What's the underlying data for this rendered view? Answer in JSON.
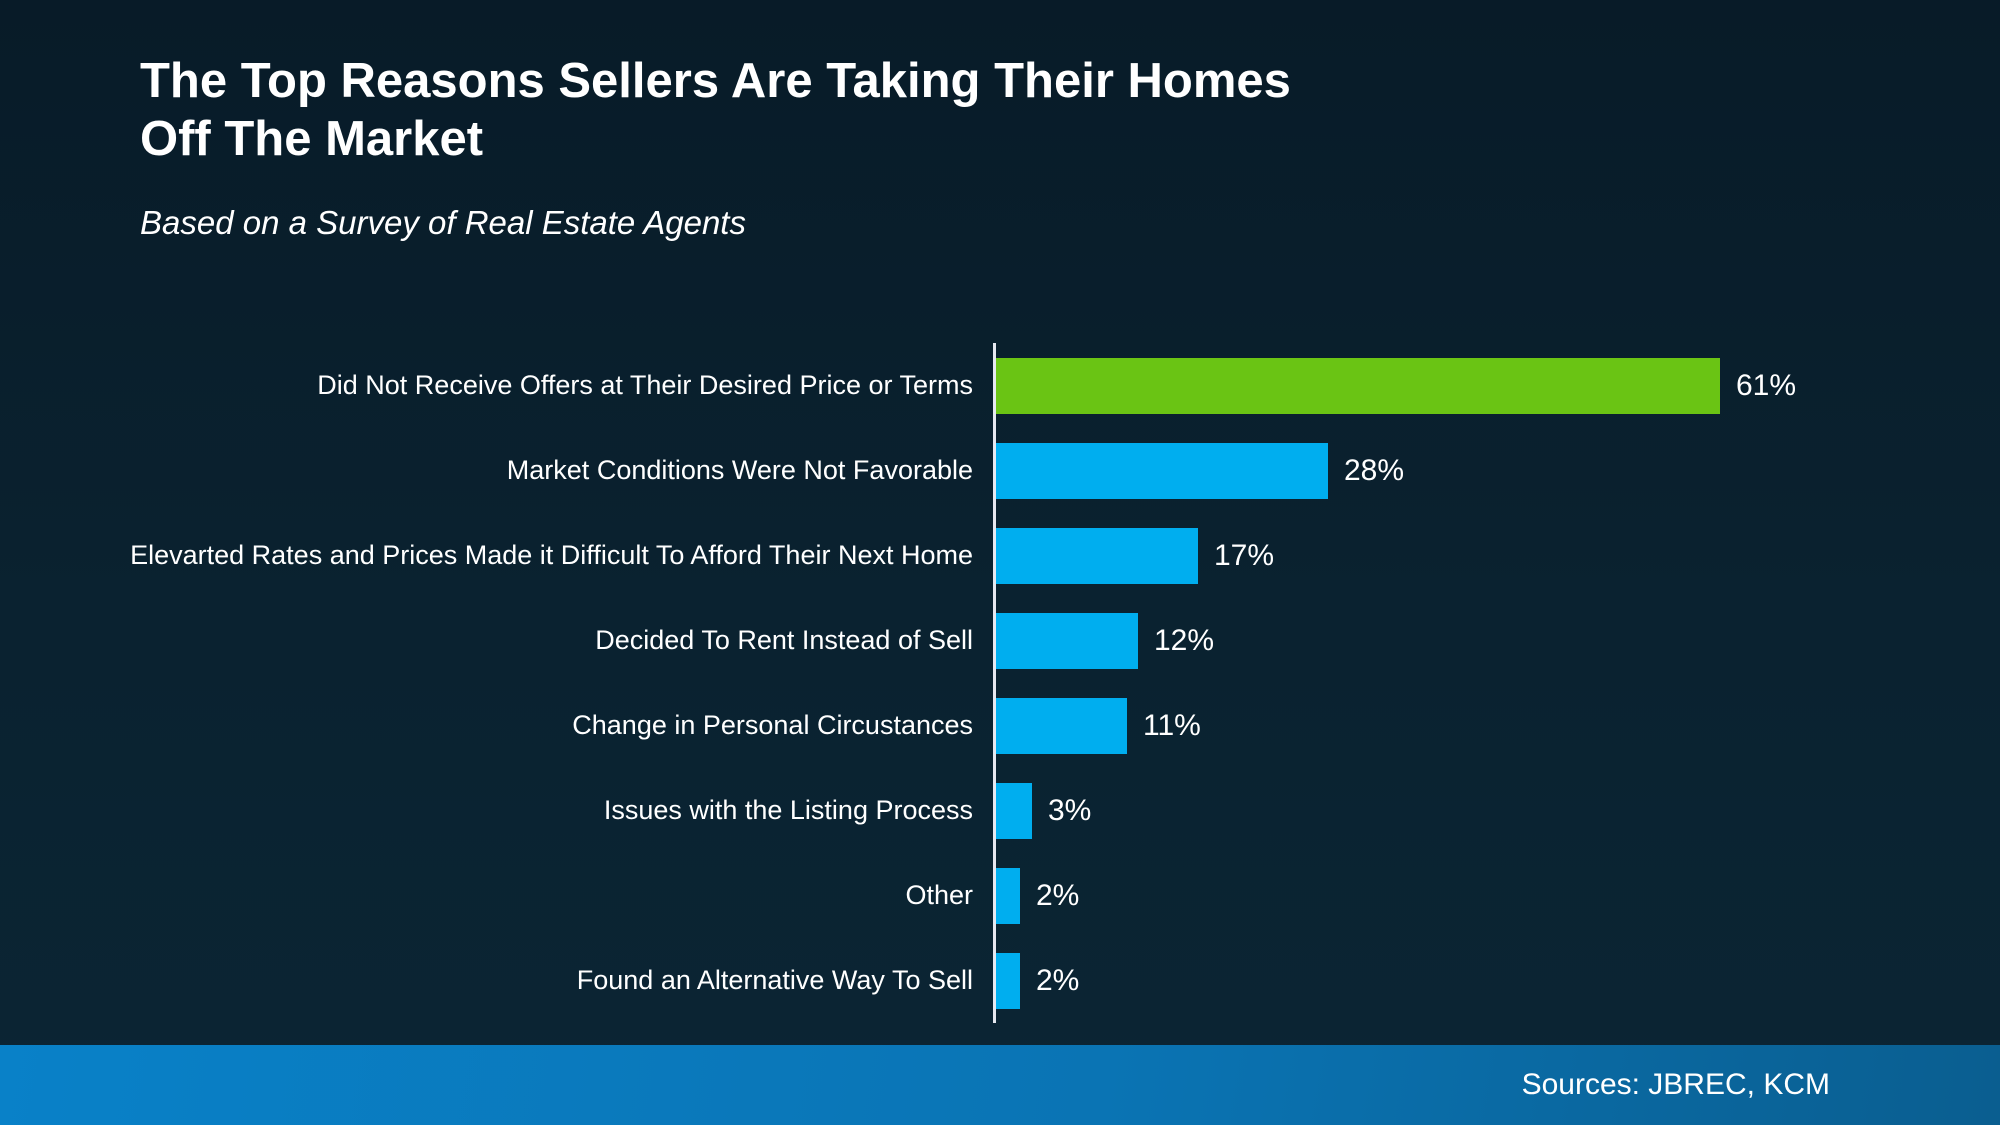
{
  "header": {
    "title_lines": [
      "The Top Reasons Sellers Are Taking Their Homes",
      "Off The Market"
    ],
    "subtitle": "Based on a Survey of Real Estate Agents"
  },
  "chart_data": {
    "type": "bar",
    "orientation": "horizontal",
    "title": "The Top Reasons Sellers Are Taking Their Homes Off The Market",
    "subtitle": "Based on a Survey of Real Estate Agents",
    "categories": [
      "Did Not Receive Offers at Their Desired Price or Terms",
      "Market Conditions Were Not Favorable",
      "Elevarted Rates and Prices Made it Difficult To Afford Their Next Home",
      "Decided To Rent Instead of Sell",
      "Change in Personal Circustances",
      "Issues with the Listing Process",
      "Other",
      "Found an Alternative Way To Sell"
    ],
    "values": [
      61,
      28,
      17,
      12,
      11,
      3,
      2,
      2
    ],
    "value_labels": [
      "61%",
      "28%",
      "17%",
      "12%",
      "11%",
      "3%",
      "2%",
      "2%"
    ],
    "xlim": [
      0,
      65
    ],
    "grid": false,
    "legend": false,
    "highlight_index": 0,
    "colors": {
      "highlight_bar": "#6AC414",
      "default_bar": "#00AEEF",
      "axis_line": "#E6E8F0",
      "label_text": "#FFFFFF"
    }
  },
  "footer": {
    "sources": "Sources: JBREC, KCM"
  },
  "theme": {
    "background_top": "#081B28",
    "background_bottom": "#0B2534",
    "footer_left": "#0981C8",
    "footer_right": "#0A5E90"
  }
}
